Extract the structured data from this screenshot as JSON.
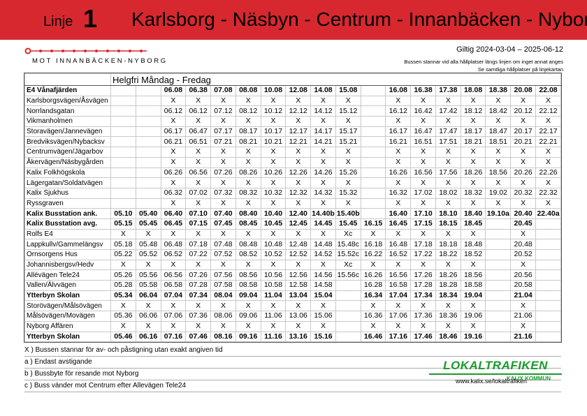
{
  "header": {
    "line_word": "Linje",
    "line_number": "1",
    "route": "Karlsborg - Näsbyn - Centrum - Innanbäcken - Nyborg"
  },
  "direction": "MOT INNANBÄCKEN-NYBORG",
  "validity": "Giltig 2024-03-04 – 2025-06-12",
  "notes": [
    "Bussen stannar vid alla hållplatser längs linjen om inget annat anges",
    "Se samtliga hållplatser på linjekartan"
  ],
  "table": {
    "period": "Helgfri Måndag - Fredag",
    "rows": [
      {
        "stop": "E4 Vånafjärden",
        "bold": true,
        "times": [
          null,
          null,
          "06.08",
          "06.38",
          "07.08",
          "08.08",
          "10.08",
          "12.08",
          "14.08",
          "15.08",
          null,
          "16.08",
          "16.38",
          "17.38",
          "18.08",
          "18.38",
          "20.08",
          "22.08"
        ]
      },
      {
        "stop": "Karlsborgsvägen/Åsvägen",
        "times": [
          null,
          null,
          "X",
          "X",
          "X",
          "X",
          "X",
          "X",
          "X",
          "X",
          null,
          "X",
          "X",
          "X",
          "X",
          "X",
          "X",
          "X"
        ]
      },
      {
        "stop": "Norrlandsgatan",
        "times": [
          null,
          null,
          "06.12",
          "06.12",
          "07.12",
          "08.12",
          "10.12",
          "12.12",
          "14.12",
          "15.12",
          null,
          "16.12",
          "16.42",
          "17.42",
          "18.12",
          "18.42",
          "20.12",
          "22.12"
        ]
      },
      {
        "stop": "Vikmanholmen",
        "times": [
          null,
          null,
          "X",
          "X",
          "X",
          "X",
          "X",
          "X",
          "X",
          "X",
          null,
          "X",
          "X",
          "X",
          "X",
          "X",
          "X",
          "X"
        ]
      },
      {
        "stop": "Storavägen/Jannevägen",
        "times": [
          null,
          null,
          "06.17",
          "06.47",
          "07.17",
          "08.17",
          "10.17",
          "12.17",
          "14.17",
          "15.17",
          null,
          "16.17",
          "16.47",
          "17.47",
          "18.17",
          "18.47",
          "20.17",
          "22.17"
        ]
      },
      {
        "stop": "Bredviksvägen/Nybacksv",
        "times": [
          null,
          null,
          "06.21",
          "06.51",
          "07.21",
          "08.21",
          "10.21",
          "12.21",
          "14.21",
          "15.21",
          null,
          "16.21",
          "16.51",
          "17.51",
          "18.21",
          "18.51",
          "20.21",
          "22.21"
        ]
      },
      {
        "stop": "Centrumvägen/Jägarbov",
        "times": [
          null,
          null,
          "X",
          "X",
          "X",
          "X",
          "X",
          "X",
          "X",
          "X",
          null,
          "X",
          "X",
          "X",
          "X",
          "X",
          "X",
          "X"
        ]
      },
      {
        "stop": "Åkervägen/Näsbygården",
        "times": [
          null,
          null,
          "X",
          "X",
          "X",
          "X",
          "X",
          "X",
          "X",
          "X",
          null,
          "X",
          "X",
          "X",
          "X",
          "X",
          "X",
          "X"
        ]
      },
      {
        "stop": "Kalix Folkhögskola",
        "times": [
          null,
          null,
          "06.26",
          "06.56",
          "07.26",
          "08.26",
          "10.26",
          "12.26",
          "14.26",
          "15.26",
          null,
          "16.26",
          "16.56",
          "17.56",
          "18.26",
          "18.56",
          "20.26",
          "22.26"
        ]
      },
      {
        "stop": "Lägergatan/Soldatvägen",
        "times": [
          null,
          null,
          "X",
          "X",
          "X",
          "X",
          "X",
          "X",
          "X",
          "X",
          null,
          "X",
          "X",
          "X",
          "X",
          "X",
          "X",
          "X"
        ]
      },
      {
        "stop": "Kalix Sjukhus",
        "times": [
          null,
          null,
          "06.32",
          "07.02",
          "07.32",
          "08.32",
          "10.32",
          "12.32",
          "14.32",
          "15.32",
          null,
          "16.32",
          "17.02",
          "18.02",
          "18.32",
          "19.02",
          "20.32",
          "22.32"
        ]
      },
      {
        "stop": "Ryssgraven",
        "times": [
          null,
          null,
          "X",
          "X",
          "X",
          "X",
          "X",
          "X",
          "X",
          "X",
          null,
          "X",
          "X",
          "X",
          "X",
          "X",
          "X",
          "X"
        ]
      },
      {
        "stop": "Kalix Busstation ank.",
        "bold": true,
        "times": [
          "05.10",
          "05.40",
          "06.40",
          "07.10",
          "07.40",
          "08.40",
          "10.40",
          "12.40",
          "14.40b",
          "15.40b",
          null,
          "16.40",
          "17.10",
          "18.10",
          "18.40",
          "19.10a",
          "20.40",
          "22.40a"
        ]
      },
      {
        "stop": "Kalix Busstation avg.",
        "bold": true,
        "times": [
          "05.15",
          "05.45",
          "06.45",
          "07.15",
          "07.45",
          "08.45",
          "10.45",
          "12.45",
          "14.45",
          "15.45",
          "16.15",
          "16.45",
          "17.15",
          "18.15",
          "18.45",
          null,
          "20.45",
          null
        ]
      },
      {
        "stop": "Rolfs E4",
        "times": [
          "X",
          "X",
          "X",
          "X",
          "X",
          "X",
          "X",
          "X",
          "X",
          "Xc",
          "X",
          "X",
          "X",
          "X",
          "X",
          null,
          "X",
          null
        ]
      },
      {
        "stop": "Lappkullv/Gammelängsv",
        "times": [
          "05.18",
          "05.48",
          "06.48",
          "07.18",
          "07.48",
          "08.48",
          "10.48",
          "12.48",
          "14.48",
          "15.48c",
          "16.18",
          "16.48",
          "17.18",
          "18.18",
          "18.48",
          null,
          "20.48",
          null
        ]
      },
      {
        "stop": "Ornsorgens Hus",
        "times": [
          "05.22",
          "05.52",
          "06.52",
          "07.22",
          "07.52",
          "08.52",
          "10.52",
          "12.52",
          "14.52",
          "15.52c",
          "16.22",
          "16.52",
          "17.22",
          "18.22",
          "18.52",
          null,
          "20.52",
          null
        ]
      },
      {
        "stop": "Johannisbergsv/Hedv",
        "times": [
          "X",
          "X",
          "X",
          "X",
          "X",
          "X",
          "X",
          "X",
          "X",
          "Xc",
          "X",
          "X",
          "X",
          "X",
          "X",
          null,
          "X",
          null
        ]
      },
      {
        "stop": "Allévägen Tele24",
        "times": [
          "05.26",
          "05.56",
          "06.56",
          "07.26",
          "07.56",
          "08.56",
          "10.56",
          "12.56",
          "14.56",
          "15.56c",
          "16.26",
          "16.56",
          "17.26",
          "18.26",
          "18.56",
          null,
          "20.56",
          null
        ]
      },
      {
        "stop": "Vallen/Älvvägen",
        "times": [
          "05.28",
          "05.58",
          "06.58",
          "07.28",
          "07.58",
          "08.58",
          "10.58",
          "12.58",
          "14.58",
          null,
          "16.28",
          "16.58",
          "17.28",
          "18.28",
          "18.58",
          null,
          "20.58",
          null
        ]
      },
      {
        "stop": "Ytterbyn Skolan",
        "bold": true,
        "times": [
          "05.34",
          "06.04",
          "07.04",
          "07.34",
          "08.04",
          "09.04",
          "11.04",
          "13.04",
          "15.04",
          null,
          "16.34",
          "17.04",
          "17.34",
          "18.34",
          "19.04",
          null,
          "21.04",
          null
        ]
      },
      {
        "stop": "Storövägen/Målsövägen",
        "times": [
          "X",
          "X",
          "X",
          "X",
          "X",
          "X",
          "X",
          "X",
          "X",
          null,
          "X",
          "X",
          "X",
          "X",
          "X",
          null,
          "X",
          null
        ]
      },
      {
        "stop": "Målsövägen/Movägen",
        "times": [
          "05.36",
          "06.06",
          "07.06",
          "07.36",
          "08.06",
          "09.06",
          "11.06",
          "13.06",
          "15.06",
          null,
          "16.36",
          "17.06",
          "17.36",
          "18.36",
          "19.06",
          null,
          "21.06",
          null
        ]
      },
      {
        "stop": "Nyborg Affären",
        "times": [
          "X",
          "X",
          "X",
          "X",
          "X",
          "X",
          "X",
          "X",
          "X",
          null,
          "X",
          "X",
          "X",
          "X",
          "X",
          null,
          "X",
          null
        ]
      },
      {
        "stop": "Ytterbyn Skolan",
        "bold": true,
        "times": [
          "05.46",
          "06.16",
          "07.16",
          "07.46",
          "08.16",
          "09.16",
          "11.16",
          "13.16",
          "15.16",
          null,
          "16.46",
          "17.16",
          "17.46",
          "18.46",
          "19.16",
          null,
          "21.16",
          null
        ]
      }
    ]
  },
  "footnotes": [
    "X ) Bussen stannar för av- och påstigning utan exakt angiven tid",
    "a ) Endast avstigande",
    "b ) Bussbyte för resande mot Nyborg",
    "c ) Buss vänder mot Centrum efter Allevägen Tele24"
  ],
  "logo": {
    "name": "LOKALTRAFIKEN",
    "sub": "KALIX KOMMUN",
    "url": "www.kalix.se/lokaltrafiken"
  }
}
